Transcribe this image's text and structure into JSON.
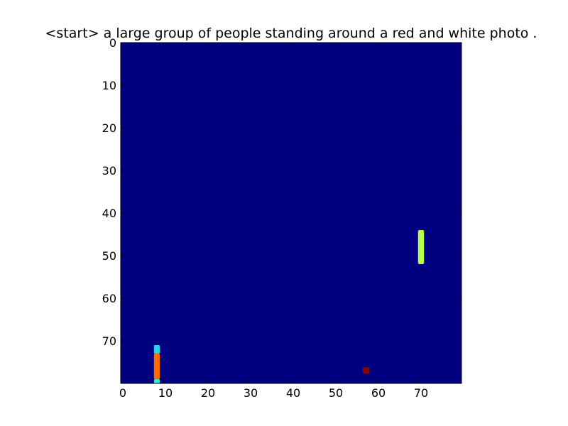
{
  "chart_data": {
    "type": "heatmap",
    "title": "<start> a large group of people standing around a red and white photo .",
    "xlabel": "",
    "ylabel": "",
    "grid": "off",
    "colormap": "jet",
    "background_color": "#000080",
    "xlim": [
      0,
      80
    ],
    "ylim": [
      80,
      0
    ],
    "xticks": [
      0,
      10,
      20,
      30,
      40,
      50,
      60,
      70
    ],
    "yticks": [
      0,
      10,
      20,
      30,
      40,
      50,
      60,
      70
    ],
    "bright_regions": [
      {
        "x": [
          69.8,
          71.2
        ],
        "y": [
          44,
          52
        ],
        "color": "#b4ff48"
      },
      {
        "x": [
          7.8,
          9.2
        ],
        "y": [
          71,
          73
        ],
        "color": "#22d6e6"
      },
      {
        "x": [
          7.8,
          9.2
        ],
        "y": [
          73,
          79
        ],
        "color": "#ff6a00"
      },
      {
        "x": [
          7.8,
          9.2
        ],
        "y": [
          79,
          80
        ],
        "color": "#3fe6c9"
      },
      {
        "x": [
          56.8,
          58.4
        ],
        "y": [
          76.2,
          77.7
        ],
        "color": "#8b0000"
      }
    ]
  }
}
